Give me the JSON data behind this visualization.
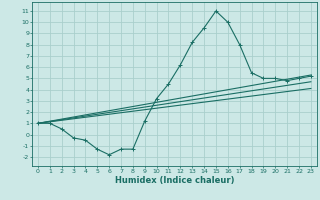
{
  "title": "",
  "xlabel": "Humidex (Indice chaleur)",
  "ylabel": "",
  "bg_color": "#cce8e6",
  "grid_color": "#aacfcc",
  "line_color": "#1a6e64",
  "xlim": [
    -0.5,
    23.5
  ],
  "ylim": [
    -2.8,
    11.8
  ],
  "xticks": [
    0,
    1,
    2,
    3,
    4,
    5,
    6,
    7,
    8,
    9,
    10,
    11,
    12,
    13,
    14,
    15,
    16,
    17,
    18,
    19,
    20,
    21,
    22,
    23
  ],
  "yticks": [
    -2,
    -1,
    0,
    1,
    2,
    3,
    4,
    5,
    6,
    7,
    8,
    9,
    10,
    11
  ],
  "zigzag_x": [
    0,
    1,
    2,
    3,
    4,
    5,
    6,
    7,
    8,
    9,
    10,
    11,
    12,
    13,
    14,
    15,
    16,
    17,
    18,
    19,
    20,
    21,
    22,
    23
  ],
  "zigzag_y": [
    1.0,
    1.0,
    0.5,
    -0.3,
    -0.5,
    -1.3,
    -1.8,
    -1.3,
    -1.3,
    1.2,
    3.2,
    4.5,
    6.2,
    8.2,
    9.5,
    11.0,
    10.0,
    8.0,
    5.5,
    5.0,
    5.0,
    4.8,
    5.0,
    5.2
  ],
  "line1_x": [
    0,
    23
  ],
  "line1_y": [
    1.0,
    5.3
  ],
  "line2_x": [
    0,
    23
  ],
  "line2_y": [
    1.0,
    4.7
  ],
  "line3_x": [
    0,
    23
  ],
  "line3_y": [
    1.0,
    4.1
  ],
  "tick_fontsize": 4.5,
  "xlabel_fontsize": 6.0,
  "linewidth": 0.8,
  "marker_size": 2.5,
  "marker_lw": 0.7
}
